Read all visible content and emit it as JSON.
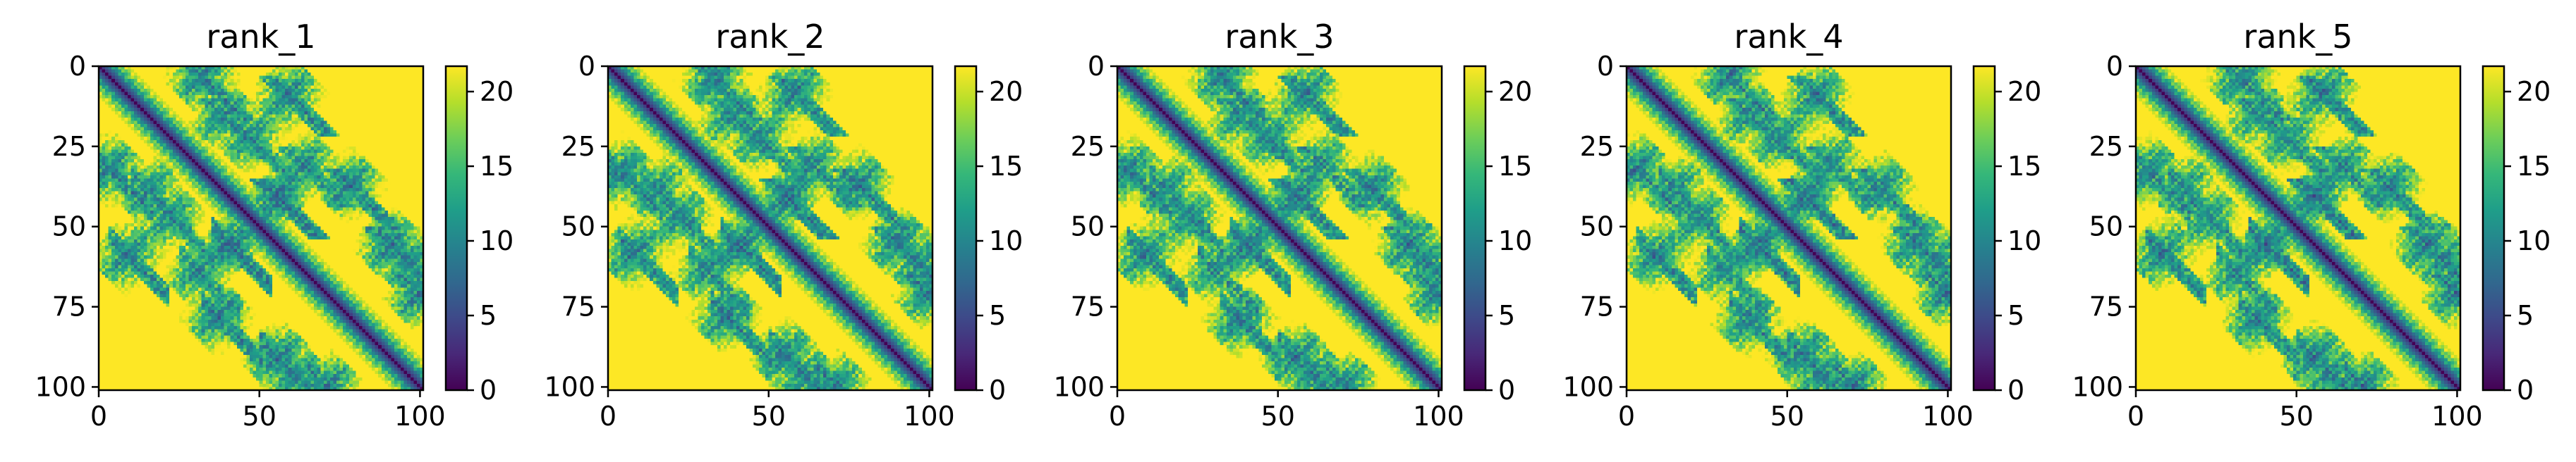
{
  "chart_data": [
    {
      "type": "heatmap",
      "title": "rank_1",
      "xticks": [
        0,
        50,
        100
      ],
      "yticks": [
        0,
        25,
        50,
        75,
        100
      ],
      "xlim": [
        0,
        101
      ],
      "ylim": [
        101,
        0
      ],
      "colorbar": {
        "ticks": [
          0,
          5,
          10,
          15,
          20
        ],
        "range": [
          0,
          21.7
        ],
        "colormap": "viridis"
      }
    },
    {
      "type": "heatmap",
      "title": "rank_2",
      "xticks": [
        0,
        50,
        100
      ],
      "yticks": [
        0,
        25,
        50,
        75,
        100
      ],
      "xlim": [
        0,
        101
      ],
      "ylim": [
        101,
        0
      ],
      "colorbar": {
        "ticks": [
          0,
          5,
          10,
          15,
          20
        ],
        "range": [
          0,
          21.7
        ],
        "colormap": "viridis"
      }
    },
    {
      "type": "heatmap",
      "title": "rank_3",
      "xticks": [
        0,
        50,
        100
      ],
      "yticks": [
        0,
        25,
        50,
        75,
        100
      ],
      "xlim": [
        0,
        101
      ],
      "ylim": [
        101,
        0
      ],
      "colorbar": {
        "ticks": [
          0,
          5,
          10,
          15,
          20
        ],
        "range": [
          0,
          21.7
        ],
        "colormap": "viridis"
      }
    },
    {
      "type": "heatmap",
      "title": "rank_4",
      "xticks": [
        0,
        50,
        100
      ],
      "yticks": [
        0,
        25,
        50,
        75,
        100
      ],
      "xlim": [
        0,
        101
      ],
      "ylim": [
        101,
        0
      ],
      "colorbar": {
        "ticks": [
          0,
          5,
          10,
          15,
          20
        ],
        "range": [
          0,
          21.7
        ],
        "colormap": "viridis"
      }
    },
    {
      "type": "heatmap",
      "title": "rank_5",
      "xticks": [
        0,
        50,
        100
      ],
      "yticks": [
        0,
        25,
        50,
        75,
        100
      ],
      "xlim": [
        0,
        101
      ],
      "ylim": [
        101,
        0
      ],
      "colorbar": {
        "ticks": [
          0,
          5,
          10,
          15,
          20
        ],
        "range": [
          0,
          21.7
        ],
        "colormap": "viridis"
      }
    }
  ],
  "colors": {
    "viridis": [
      "#440154",
      "#482878",
      "#3e4989",
      "#31688e",
      "#26828e",
      "#1f9e89",
      "#35b779",
      "#6ece58",
      "#b5de2b",
      "#fde725"
    ]
  }
}
